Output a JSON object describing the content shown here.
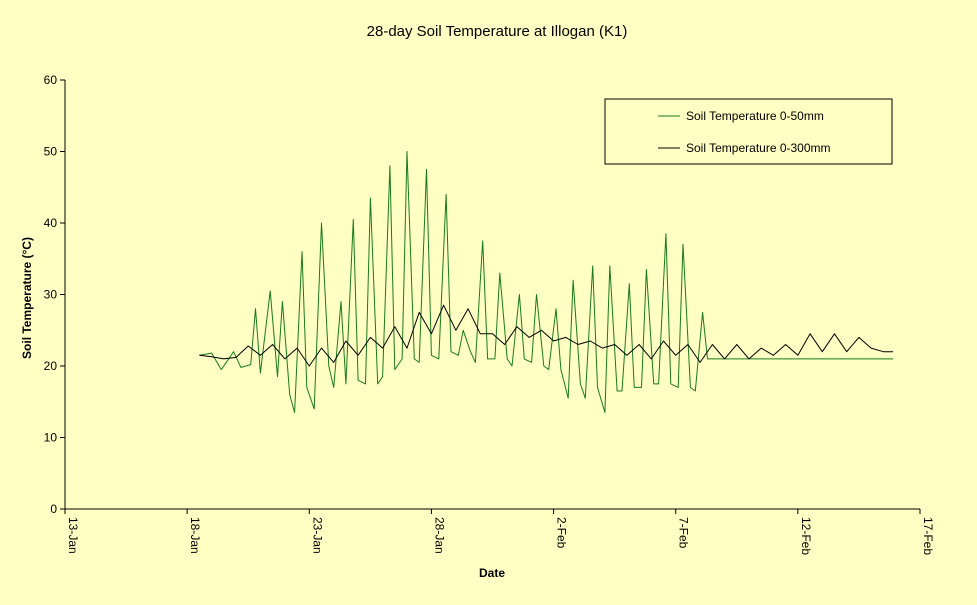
{
  "chart_data": {
    "type": "line",
    "title": "28-day Soil Temperature at Illogan (K1)",
    "xlabel": "Date",
    "ylabel": "Soil Temperature (°C)",
    "ylim": [
      0,
      60
    ],
    "yticks": [
      "0",
      "10",
      "20",
      "30",
      "40",
      "50",
      "60"
    ],
    "xlim_days": [
      0,
      35
    ],
    "xticks": [
      "13-Jan",
      "18-Jan",
      "23-Jan",
      "28-Jan",
      "2-Feb",
      "7-Feb",
      "12-Feb",
      "17-Feb"
    ],
    "grid": false,
    "legend_position": "top-right",
    "series": [
      {
        "name": "Soil Temperature 0-50mm",
        "color": "#1a7a1a",
        "x_days": [
          5.5,
          6.0,
          6.4,
          6.9,
          7.2,
          7.6,
          7.8,
          8.0,
          8.4,
          8.7,
          8.9,
          9.2,
          9.4,
          9.7,
          9.9,
          10.2,
          10.5,
          10.8,
          11.0,
          11.3,
          11.5,
          11.8,
          12.0,
          12.3,
          12.5,
          12.8,
          13.0,
          13.3,
          13.5,
          13.8,
          14.0,
          14.3,
          14.5,
          14.8,
          15.0,
          15.3,
          15.6,
          15.8,
          16.1,
          16.3,
          16.6,
          16.8,
          17.1,
          17.3,
          17.6,
          17.8,
          18.1,
          18.3,
          18.6,
          18.8,
          19.1,
          19.3,
          19.6,
          19.8,
          20.1,
          20.3,
          20.6,
          20.8,
          21.1,
          21.3,
          21.6,
          21.8,
          22.1,
          22.3,
          22.6,
          22.8,
          23.1,
          23.3,
          23.6,
          23.8,
          24.1,
          24.3,
          24.6,
          24.8,
          25.1,
          25.3,
          25.6,
          25.8,
          26.1,
          26.3,
          26.6,
          26.8,
          27.1,
          27.3,
          27.6,
          27.8,
          28.1,
          28.3,
          28.6,
          28.8,
          29.1,
          29.3,
          29.6,
          29.8,
          30.1,
          30.3,
          30.6,
          30.8,
          31.1,
          31.3,
          31.6,
          31.8,
          32.1,
          32.3,
          32.6,
          32.8,
          33.1,
          33.3,
          33.6,
          33.8,
          33.9
        ],
        "values": [
          21.5,
          21.8,
          19.5,
          22.0,
          19.8,
          20.2,
          28.0,
          19.0,
          30.5,
          18.5,
          29.0,
          16.0,
          13.5,
          36.0,
          17.0,
          14.0,
          40.0,
          20.0,
          17.0,
          29.0,
          17.5,
          40.5,
          18.0,
          17.5,
          43.5,
          17.5,
          18.5,
          48.0,
          19.5,
          21.0,
          50.0,
          21.0,
          20.5,
          47.5,
          21.5,
          21.0,
          44.0,
          22.0,
          21.5,
          25.0,
          22.0,
          20.5,
          37.5,
          21.0,
          21.0,
          33.0,
          21.0,
          20.0,
          30.0,
          21.0,
          20.5,
          30.0,
          20.0,
          19.5,
          28.0,
          19.5,
          15.5,
          32.0,
          17.5,
          15.5,
          34.0,
          17.0,
          13.5,
          34.0,
          16.5,
          16.5,
          31.5,
          17.0,
          17.0,
          33.5,
          17.5,
          17.5,
          38.5,
          17.5,
          17.0,
          37.0,
          17.0,
          16.5,
          27.5,
          21.0,
          21.0,
          21.0,
          21.0,
          21.0,
          21.0,
          21.0,
          21.0,
          21.0,
          21.0,
          21.0,
          21.0,
          21.0,
          21.0,
          21.0,
          21.0,
          21.0,
          21.0,
          21.0,
          21.0,
          21.0,
          21.0,
          21.0,
          21.0,
          21.0,
          21.0,
          21.0,
          21.0,
          21.0,
          21.0,
          21.0,
          21.0
        ]
      },
      {
        "name": "Soil Temperature 0-300mm",
        "color": "#000000",
        "x_days": [
          5.5,
          6.0,
          6.5,
          7.0,
          7.5,
          8.0,
          8.5,
          9.0,
          9.5,
          10.0,
          10.5,
          11.0,
          11.5,
          12.0,
          12.5,
          13.0,
          13.5,
          14.0,
          14.5,
          15.0,
          15.5,
          16.0,
          16.5,
          17.0,
          17.5,
          18.0,
          18.5,
          19.0,
          19.5,
          20.0,
          20.5,
          21.0,
          21.5,
          22.0,
          22.5,
          23.0,
          23.5,
          24.0,
          24.5,
          25.0,
          25.5,
          26.0,
          26.5,
          27.0,
          27.5,
          28.0,
          28.5,
          29.0,
          29.5,
          30.0,
          30.5,
          31.0,
          31.5,
          32.0,
          32.5,
          33.0,
          33.5,
          33.9
        ],
        "values": [
          21.5,
          21.3,
          21.0,
          21.2,
          22.8,
          21.5,
          23.0,
          21.0,
          22.5,
          20.0,
          22.5,
          20.5,
          23.5,
          21.5,
          24.0,
          22.5,
          25.5,
          22.5,
          27.5,
          24.5,
          28.5,
          25.0,
          28.0,
          24.5,
          24.5,
          23.0,
          25.5,
          24.0,
          25.0,
          23.5,
          24.0,
          23.0,
          23.5,
          22.5,
          23.0,
          21.5,
          23.0,
          21.0,
          23.5,
          21.5,
          23.0,
          20.5,
          23.0,
          21.0,
          23.0,
          21.0,
          22.5,
          21.5,
          23.0,
          21.5,
          24.5,
          22.0,
          24.5,
          22.0,
          24.0,
          22.5,
          22.0,
          22.0
        ]
      }
    ]
  }
}
